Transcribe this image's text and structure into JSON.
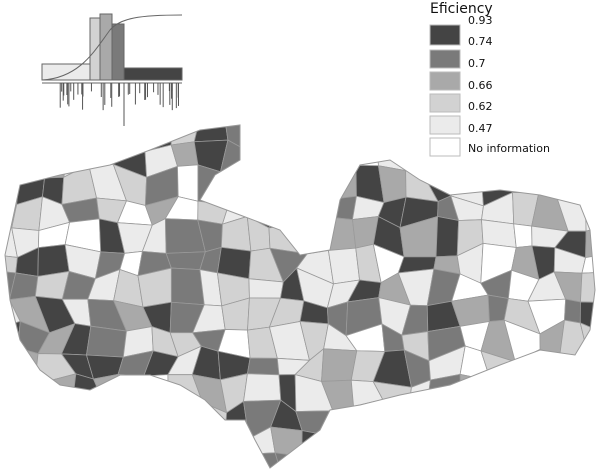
{
  "legend": {
    "title": "Eficiency",
    "breaks": [
      "0.93",
      "0.74",
      "0.7",
      "0.66",
      "0.62",
      "0.47"
    ],
    "no_data": "No information",
    "colors": [
      "#444444",
      "#7a7a7a",
      "#a9a9a9",
      "#d2d2d2",
      "#ebebeb",
      "#ffffff"
    ]
  }
}
